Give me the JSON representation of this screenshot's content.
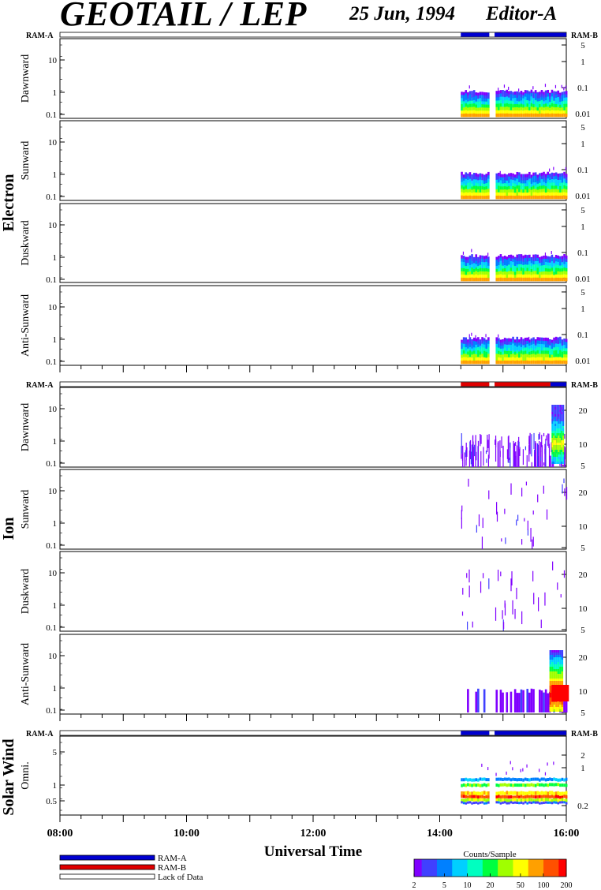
{
  "header": {
    "instrument": "GEOTAIL / LEP",
    "date": "25 Jun, 1994",
    "editor": "Editor-A"
  },
  "colors": {
    "ram_a": "#0000d0",
    "ram_b": "#e00000",
    "lack": "#ffffff",
    "colorbar": [
      "#8000ff",
      "#4040ff",
      "#0080ff",
      "#00d0ff",
      "#00ffc0",
      "#00ff40",
      "#a0ff00",
      "#ffff00",
      "#ffa000",
      "#ff5000",
      "#ff0000"
    ]
  },
  "chart_data": {
    "type": "heatmap",
    "xlabel": "Universal Time",
    "x_ticks": [
      "08:00",
      "10:00",
      "12:00",
      "14:00",
      "16:00"
    ],
    "x_range": [
      "08:00",
      "16:00"
    ],
    "data_interval": [
      "14:20",
      "16:00"
    ],
    "data_gap": [
      "14:47",
      "14:52"
    ],
    "groups": [
      {
        "name": "Electron",
        "mode_bar": {
          "left": "RAM-A",
          "right": "RAM-B",
          "segments": [
            {
              "from": "14:20",
              "to": "14:47",
              "mode": "RAM-A"
            },
            {
              "from": "14:52",
              "to": "16:00",
              "mode": "RAM-A"
            }
          ]
        },
        "panels": [
          {
            "label": "Dawnward",
            "left_ticks": [
              "10",
              "1",
              "0.1"
            ],
            "right_ticks": [
              "5",
              "1",
              "0.1",
              "0.01"
            ],
            "intensity": "medium"
          },
          {
            "label": "Sunward",
            "left_ticks": [
              "10",
              "1",
              "0.1"
            ],
            "right_ticks": [
              "5",
              "1",
              "0.1",
              "0.01"
            ],
            "intensity": "medium"
          },
          {
            "label": "Duskward",
            "left_ticks": [
              "10",
              "1",
              "0.1"
            ],
            "right_ticks": [
              "5",
              "1",
              "0.1",
              "0.01"
            ],
            "intensity": "medium"
          },
          {
            "label": "Anti-Sunward",
            "left_ticks": [
              "10",
              "1",
              "0.1"
            ],
            "right_ticks": [
              "5",
              "1",
              "0.1",
              "0.01"
            ],
            "intensity": "medium"
          }
        ]
      },
      {
        "name": "Ion",
        "mode_bar": {
          "left": "RAM-A",
          "right": "RAM-B",
          "segments": [
            {
              "from": "14:20",
              "to": "14:47",
              "mode": "RAM-B"
            },
            {
              "from": "14:52",
              "to": "15:45",
              "mode": "RAM-B"
            },
            {
              "from": "15:45",
              "to": "16:00",
              "mode": "RAM-A"
            }
          ]
        },
        "panels": [
          {
            "label": "Dawnward",
            "left_ticks": [
              "10",
              "1",
              "0.1"
            ],
            "right_ticks": [
              "20",
              "10",
              "5"
            ],
            "intensity": "sparse"
          },
          {
            "label": "Sunward",
            "left_ticks": [
              "10",
              "1",
              "0.1"
            ],
            "right_ticks": [
              "20",
              "10",
              "5"
            ],
            "intensity": "very-sparse"
          },
          {
            "label": "Duskward",
            "left_ticks": [
              "10",
              "1",
              "0.1"
            ],
            "right_ticks": [
              "20",
              "10",
              "5"
            ],
            "intensity": "very-sparse"
          },
          {
            "label": "Anti-Sunward",
            "left_ticks": [
              "10",
              "1",
              "0.1"
            ],
            "right_ticks": [
              "20",
              "10",
              "5"
            ],
            "intensity": "burst"
          }
        ]
      },
      {
        "name": "Solar Wind",
        "mode_bar": {
          "left": "RAM-A",
          "right": "RAM-B",
          "segments": [
            {
              "from": "14:20",
              "to": "14:47",
              "mode": "RAM-A"
            },
            {
              "from": "14:52",
              "to": "16:00",
              "mode": "RAM-A"
            }
          ]
        },
        "panels": [
          {
            "label": "Omni.",
            "left_ticks": [
              "5",
              "1",
              "0.5"
            ],
            "right_ticks": [
              "2",
              "1",
              "0.2"
            ],
            "intensity": "bands"
          }
        ]
      }
    ]
  },
  "legend": {
    "entries": [
      "RAM-A",
      "RAM-B",
      "Lack of Data"
    ],
    "colorbar_title": "Counts/Sample",
    "colorbar_ticks": [
      "2",
      "5",
      "10",
      "20",
      "50",
      "100",
      "200"
    ]
  }
}
